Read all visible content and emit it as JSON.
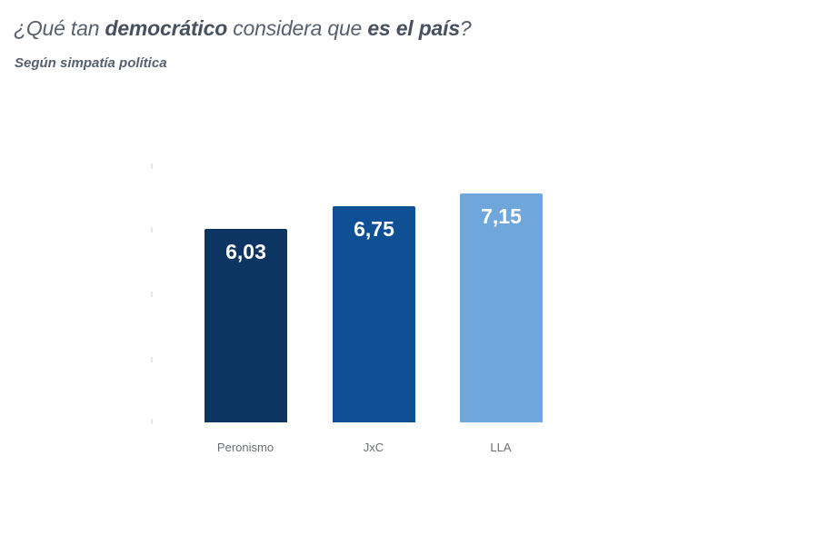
{
  "title": {
    "parts": [
      {
        "text": "¿Qué tan ",
        "bold": false
      },
      {
        "text": "democrático",
        "bold": true
      },
      {
        "text": " considera que ",
        "bold": false
      },
      {
        "text": "es el país",
        "bold": true
      },
      {
        "text": "?",
        "bold": false
      }
    ]
  },
  "subtitle": "Según simpatía política",
  "chart_data": {
    "type": "bar",
    "title": "¿Qué tan democrático considera que es el país?",
    "subtitle": "Según simpatía política",
    "categories": [
      "Peronismo",
      "JxC",
      "LLA"
    ],
    "values": [
      6.03,
      6.75,
      7.15
    ],
    "value_labels": [
      "6,03",
      "6,75",
      "7,15"
    ],
    "colors": [
      "#0d3561",
      "#0f5095",
      "#6fa6dc"
    ],
    "xlabel": "",
    "ylabel": "",
    "ylim": [
      0,
      8
    ],
    "grid": false,
    "legend": "none"
  }
}
